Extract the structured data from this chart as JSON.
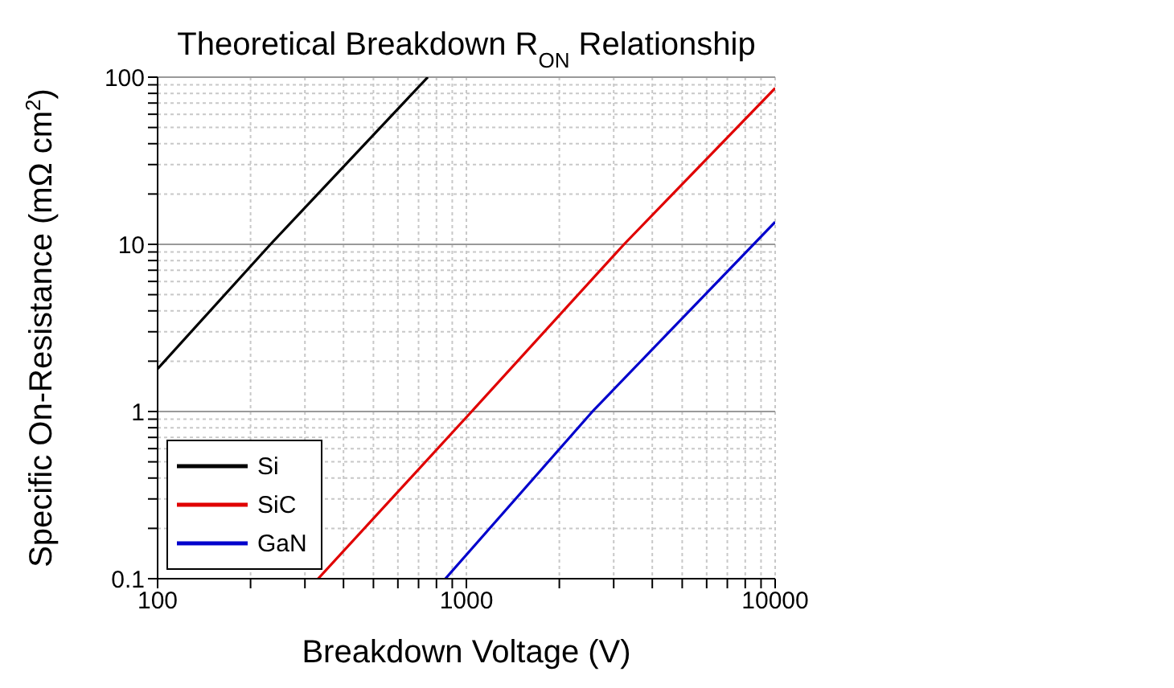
{
  "chart_data": {
    "type": "line",
    "title": "Theoretical Breakdown R$_{ON}$ Relationship",
    "xlabel": "Breakdown Voltage (V)",
    "ylabel": "Specific On-Resistance (mΩ cm$^{2}$)",
    "log": "xy",
    "xlim": [
      100,
      10000
    ],
    "xticks": [
      100,
      1000,
      10000
    ],
    "ylim": [
      0.1,
      100
    ],
    "yticks": [
      0.1,
      1,
      10,
      100
    ],
    "grid": true,
    "legend": "bottom left",
    "marker": "none",
    "line_style": "solid",
    "series": [
      {
        "name": "Si",
        "color": "#000000",
        "x": [
          100,
          232,
          750
        ],
        "values": [
          1.8,
          10,
          100
        ]
      },
      {
        "name": "SiC",
        "color": "#e00000",
        "x": [
          331,
          1040,
          3240,
          10000
        ],
        "values": [
          0.1,
          1,
          10,
          86
        ]
      },
      {
        "name": "GaN",
        "color": "#0000cc",
        "x": [
          855,
          2560,
          10000
        ],
        "values": [
          0.1,
          1,
          13.6
        ]
      }
    ]
  }
}
